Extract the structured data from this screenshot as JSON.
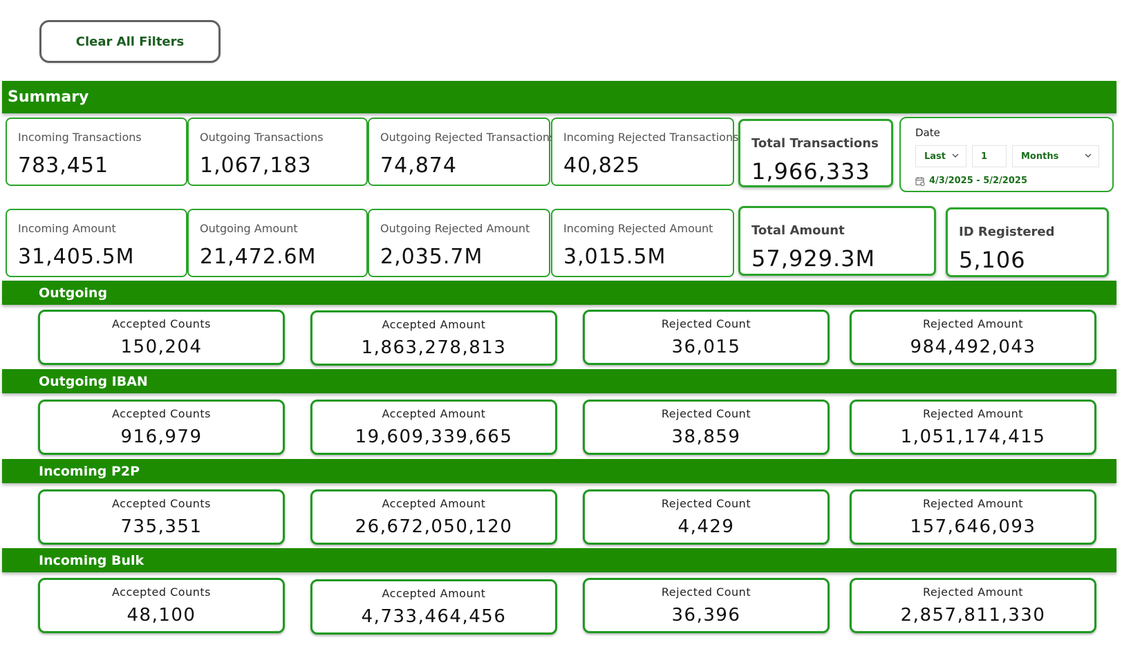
{
  "toolbar": {
    "clear_label": "Clear All Filters"
  },
  "summary": {
    "title": "Summary",
    "row1": [
      {
        "label": "Incoming Transactions",
        "value": "783,451"
      },
      {
        "label": "Outgoing Transactions",
        "value": "1,067,183"
      },
      {
        "label": "Outgoing Rejected Transactions",
        "value": "74,874"
      },
      {
        "label": "Incoming Rejected Transactions",
        "value": "40,825"
      },
      {
        "label": "Total Transactions",
        "value": "1,966,333"
      }
    ],
    "row2": [
      {
        "label": "Incoming Amount",
        "value": "31,405.5M"
      },
      {
        "label": "Outgoing Amount",
        "value": "21,472.6M"
      },
      {
        "label": "Outgoing Rejected Amount",
        "value": "2,035.7M"
      },
      {
        "label": "Incoming Rejected Amount",
        "value": "3,015.5M"
      },
      {
        "label": "Total Amount",
        "value": "57,929.3M"
      },
      {
        "label": "ID Registered",
        "value": "5,106"
      }
    ]
  },
  "date_filter": {
    "label": "Date",
    "mode": "Last",
    "count": "1",
    "unit": "Months",
    "range": "4/3/2025 - 5/2/2025",
    "accent": "#1b6e1b"
  },
  "sections": [
    {
      "title": "Outgoing",
      "kpis": [
        {
          "label": "Accepted Counts",
          "value": "150,204"
        },
        {
          "label": "Accepted Amount",
          "value": "1,863,278,813"
        },
        {
          "label": "Rejected Count",
          "value": "36,015"
        },
        {
          "label": "Rejected Amount",
          "value": "984,492,043"
        }
      ]
    },
    {
      "title": "Outgoing IBAN",
      "kpis": [
        {
          "label": "Accepted Counts",
          "value": "916,979"
        },
        {
          "label": "Accepted Amount",
          "value": "19,609,339,665"
        },
        {
          "label": "Rejected Count",
          "value": "38,859"
        },
        {
          "label": "Rejected Amount",
          "value": "1,051,174,415"
        }
      ]
    },
    {
      "title": "Incoming P2P",
      "kpis": [
        {
          "label": "Accepted Counts",
          "value": "735,351"
        },
        {
          "label": "Accepted Amount",
          "value": "26,672,050,120"
        },
        {
          "label": "Rejected Count",
          "value": "4,429"
        },
        {
          "label": "Rejected Amount",
          "value": "157,646,093"
        }
      ]
    },
    {
      "title": "Incoming Bulk",
      "kpis": [
        {
          "label": "Accepted Counts",
          "value": "48,100"
        },
        {
          "label": "Accepted Amount",
          "value": "4,733,464,456"
        },
        {
          "label": "Rejected Count",
          "value": "36,396"
        },
        {
          "label": "Rejected Amount",
          "value": "2,857,811,330"
        }
      ]
    }
  ],
  "colors": {
    "band": "#1e8c00",
    "card_border": "#2aa52a"
  }
}
